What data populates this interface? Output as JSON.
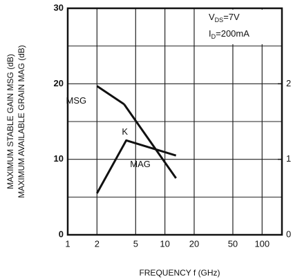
{
  "chart_data": {
    "type": "line",
    "xlabel": "FREQUENCY  f (GHz)",
    "ylabel": [
      "MAXIMUM STABLE GAIN MSG (dB)",
      "MAXIMUM AVAILABLE GRAIN MAG (dB)"
    ],
    "xscale": "log",
    "xlim": [
      1,
      160
    ],
    "xticks": [
      1,
      2,
      5,
      10,
      20,
      50,
      100
    ],
    "ylim": [
      0,
      30
    ],
    "yticks": [
      0,
      10,
      20,
      30
    ],
    "yminor": [
      5,
      15,
      25
    ],
    "y2lim": [
      0,
      3
    ],
    "y2ticks": [
      0,
      1,
      2
    ],
    "grid": true,
    "color": "#111111",
    "annotation": [
      {
        "main": "V",
        "sub": "DS",
        "rest": "=7V"
      },
      {
        "main": "I",
        "sub": "D",
        "rest": "=200mA"
      }
    ],
    "series": [
      {
        "name": "MSG",
        "x": [
          2,
          3.8
        ],
        "values": [
          19.7,
          17.3
        ]
      },
      {
        "name": "MAG",
        "x": [
          3.8,
          13
        ],
        "values": [
          17.3,
          7.5
        ]
      },
      {
        "name": "K",
        "axis": "y2",
        "x": [
          2,
          4,
          13
        ],
        "values": [
          0.55,
          1.25,
          1.05
        ]
      }
    ]
  }
}
